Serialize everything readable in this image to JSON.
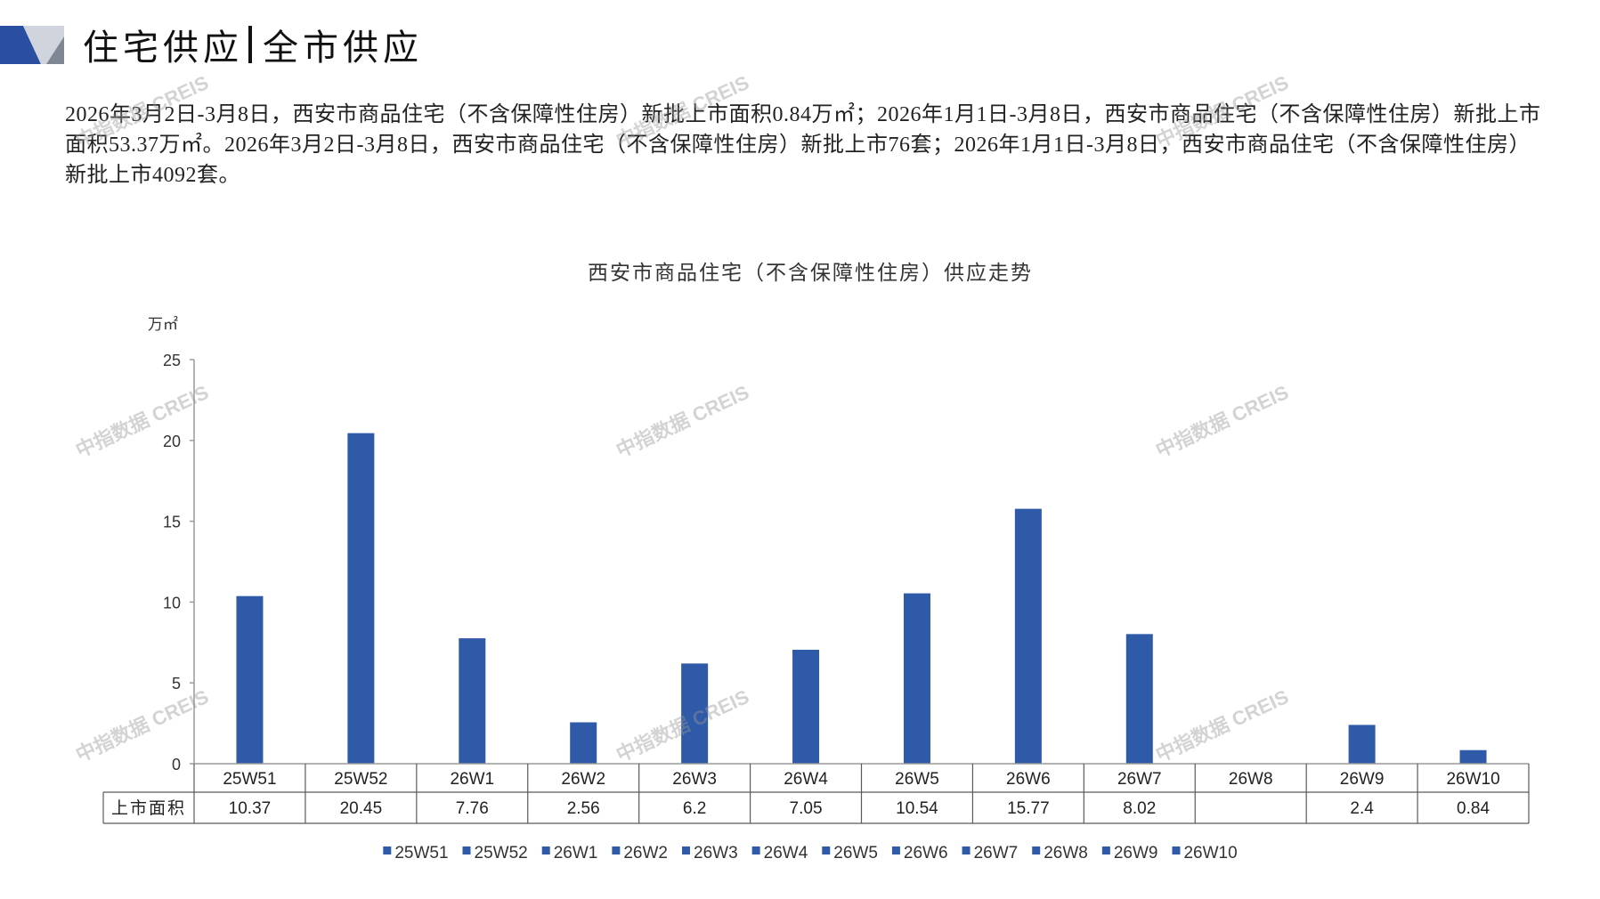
{
  "header": {
    "title_left": "住宅供应",
    "title_right": "全市供应"
  },
  "summary": {
    "text": "2026年3月2日-3月8日，西安市商品住宅（不含保障性住房）新批上市面积0.84万㎡；2026年1月1日-3月8日，西安市商品住宅（不含保障性住房）新批上市面积53.37万㎡。2026年3月2日-3月8日，西安市商品住宅（不含保障性住房）新批上市76套；2026年1月1日-3月8日，西安市商品住宅（不含保障性住房）新批上市4092套。"
  },
  "watermark": "中指数据 CREIS",
  "colors": {
    "logo_blue": "#2B4FA0",
    "logo_light_gray": "#D0D4DC",
    "logo_dark_gray": "#7F8694"
  },
  "chart_data": {
    "type": "bar",
    "title": "西安市商品住宅（不含保障性住房）供应走势",
    "xlabel": "",
    "ylabel": "万㎡",
    "categories": [
      "25W51",
      "25W52",
      "26W1",
      "26W2",
      "26W3",
      "26W4",
      "26W5",
      "26W6",
      "26W7",
      "26W8",
      "26W9",
      "26W10"
    ],
    "series": [
      {
        "name": "上市面积",
        "values": [
          10.37,
          20.45,
          7.76,
          2.56,
          6.2,
          7.05,
          10.54,
          15.77,
          8.02,
          null,
          2.4,
          0.84
        ],
        "color": "#2F5AA8"
      }
    ],
    "ylim": [
      0,
      25
    ],
    "yticks": [
      0,
      5,
      10,
      15,
      20,
      25
    ],
    "grid": false,
    "data_table": true,
    "legend": "bottom"
  }
}
